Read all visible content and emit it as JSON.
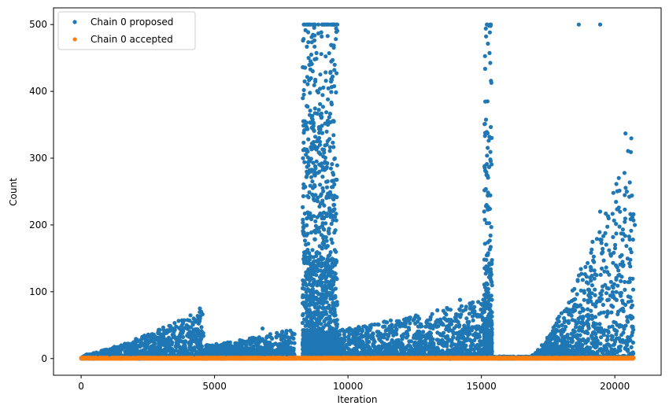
{
  "chart_data": {
    "type": "scatter",
    "title": "",
    "xlabel": "Iteration",
    "ylabel": "Count",
    "xlim": [
      -1035,
      21735
    ],
    "ylim": [
      -25,
      525
    ],
    "xticks": [
      0,
      5000,
      10000,
      15000,
      20000
    ],
    "yticks": [
      0,
      100,
      200,
      300,
      400,
      500
    ],
    "grid": false,
    "legend_position": "top-left",
    "series": [
      {
        "name": "Chain 0 proposed",
        "color": "#1f77b4",
        "description_ranges": [
          {
            "x": [
              0,
              4600
            ],
            "y_min": 0,
            "y_max_start": 5,
            "y_max_end": 75
          },
          {
            "x": [
              4600,
              8000
            ],
            "y_min": 0,
            "y_max_start": 20,
            "y_max_end": 45
          },
          {
            "x": [
              8300,
              9600
            ],
            "y_min": 0,
            "y_max": 500
          },
          {
            "x": [
              9600,
              15100
            ],
            "y_min": 0,
            "y_max_start": 45,
            "y_max_end": 90
          },
          {
            "x": [
              15100,
              15400
            ],
            "y_min": 0,
            "y_max": 500
          },
          {
            "x": [
              15400,
              16900
            ],
            "y_min": 0,
            "y_max": 3
          },
          {
            "x": [
              16900,
              20700
            ],
            "y_min": 0,
            "y_max_start": 5,
            "y_max_end": 340
          }
        ],
        "highlights": [
          [
            18650,
            500
          ],
          [
            19450,
            500
          ],
          [
            20400,
            337
          ],
          [
            20450,
            250
          ],
          [
            19450,
            220
          ],
          [
            20700,
            216
          ],
          [
            20750,
            200
          ],
          [
            19500,
            173
          ],
          [
            18900,
            137
          ],
          [
            14200,
            88
          ],
          [
            4450,
            75
          ],
          [
            4500,
            70
          ],
          [
            13100,
            62
          ],
          [
            13300,
            55
          ],
          [
            10500,
            43
          ],
          [
            11800,
            42
          ],
          [
            12200,
            40
          ],
          [
            6800,
            45
          ]
        ]
      },
      {
        "name": "Chain 0 accepted",
        "color": "#ff7f0e",
        "x_range": [
          0,
          20700
        ],
        "values_range": [
          0,
          1
        ]
      }
    ]
  }
}
